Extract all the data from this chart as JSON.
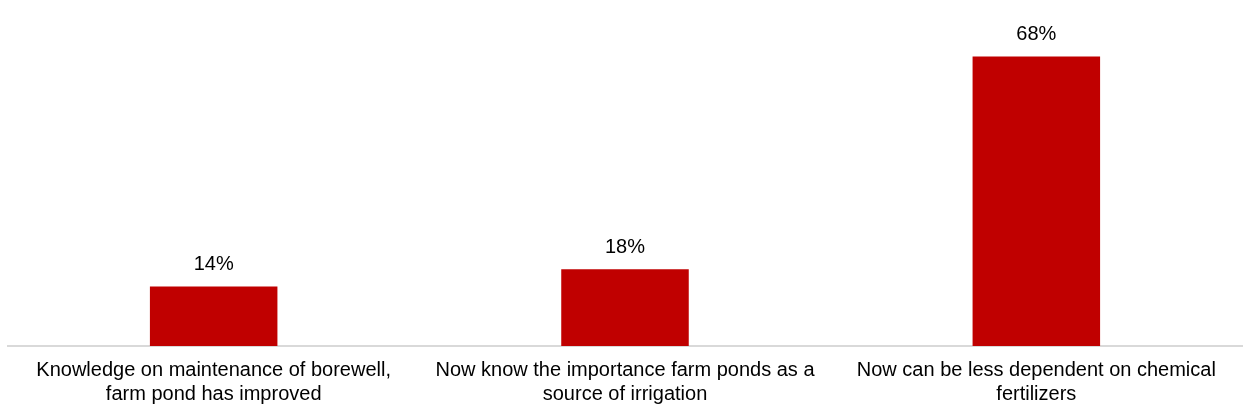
{
  "chart_data": {
    "type": "bar",
    "categories": [
      "Knowledge on maintenance of borewell, farm pond has improved",
      "Now know the importance farm ponds as a source of irrigation",
      "Now can be less dependent on chemical fertilizers"
    ],
    "values": [
      14,
      18,
      68
    ],
    "value_labels": [
      "14%",
      "18%",
      "68%"
    ],
    "color": "#c00000",
    "grid": false,
    "legend": false
  }
}
